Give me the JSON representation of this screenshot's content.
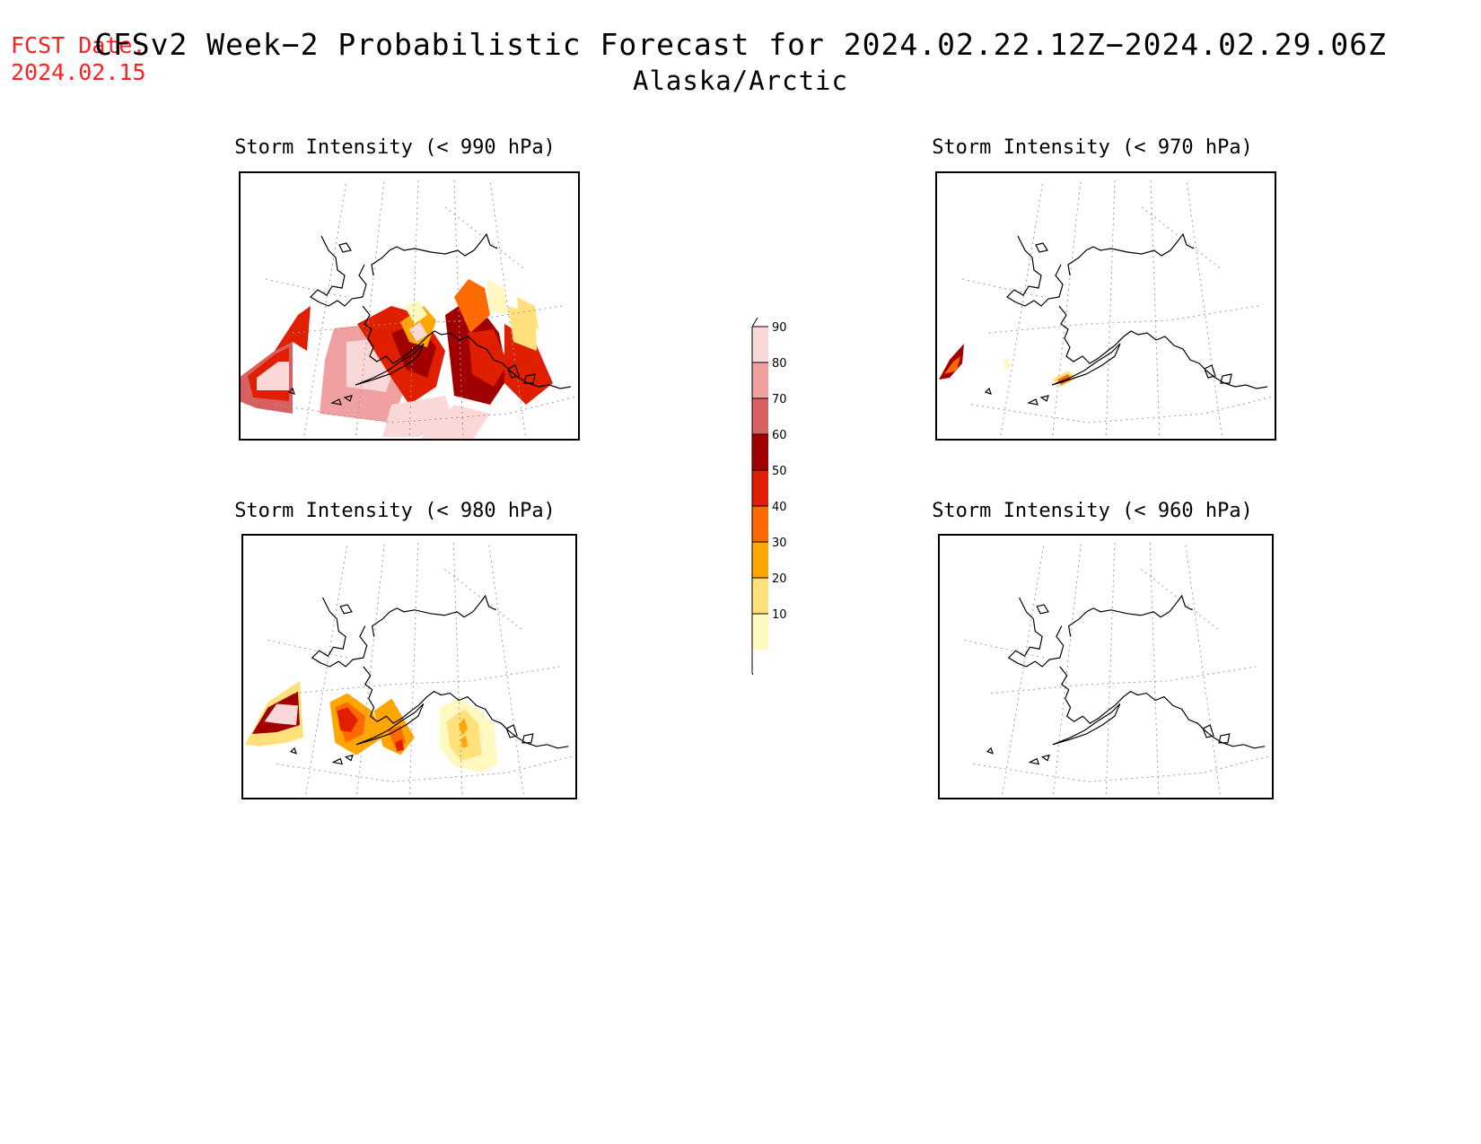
{
  "header": {
    "fcst_label": "FCST Date:",
    "fcst_date": "2024.02.15",
    "title": "CFSv2 Week−2 Probabilistic Forecast for 2024.02.22.12Z−2024.02.29.06Z",
    "subtitle": "Alaska/Arctic"
  },
  "panels": [
    {
      "id": "p990",
      "title": "Storm Intensity (< 990 hPa)",
      "coverage": "high"
    },
    {
      "id": "p970",
      "title": "Storm Intensity (< 970 hPa)",
      "coverage": "low"
    },
    {
      "id": "p980",
      "title": "Storm Intensity (< 980 hPa)",
      "coverage": "medium"
    },
    {
      "id": "p960",
      "title": "Storm Intensity (< 960 hPa)",
      "coverage": "none"
    }
  ],
  "colorbar": {
    "levels": [
      10,
      20,
      30,
      40,
      50,
      60,
      70,
      80,
      90
    ],
    "colors": [
      "#fff8c0",
      "#ffe07a",
      "#ffa600",
      "#ff6a00",
      "#e01e00",
      "#a00000",
      "#d86060",
      "#f0a0a0",
      "#fbd8d8"
    ]
  }
}
